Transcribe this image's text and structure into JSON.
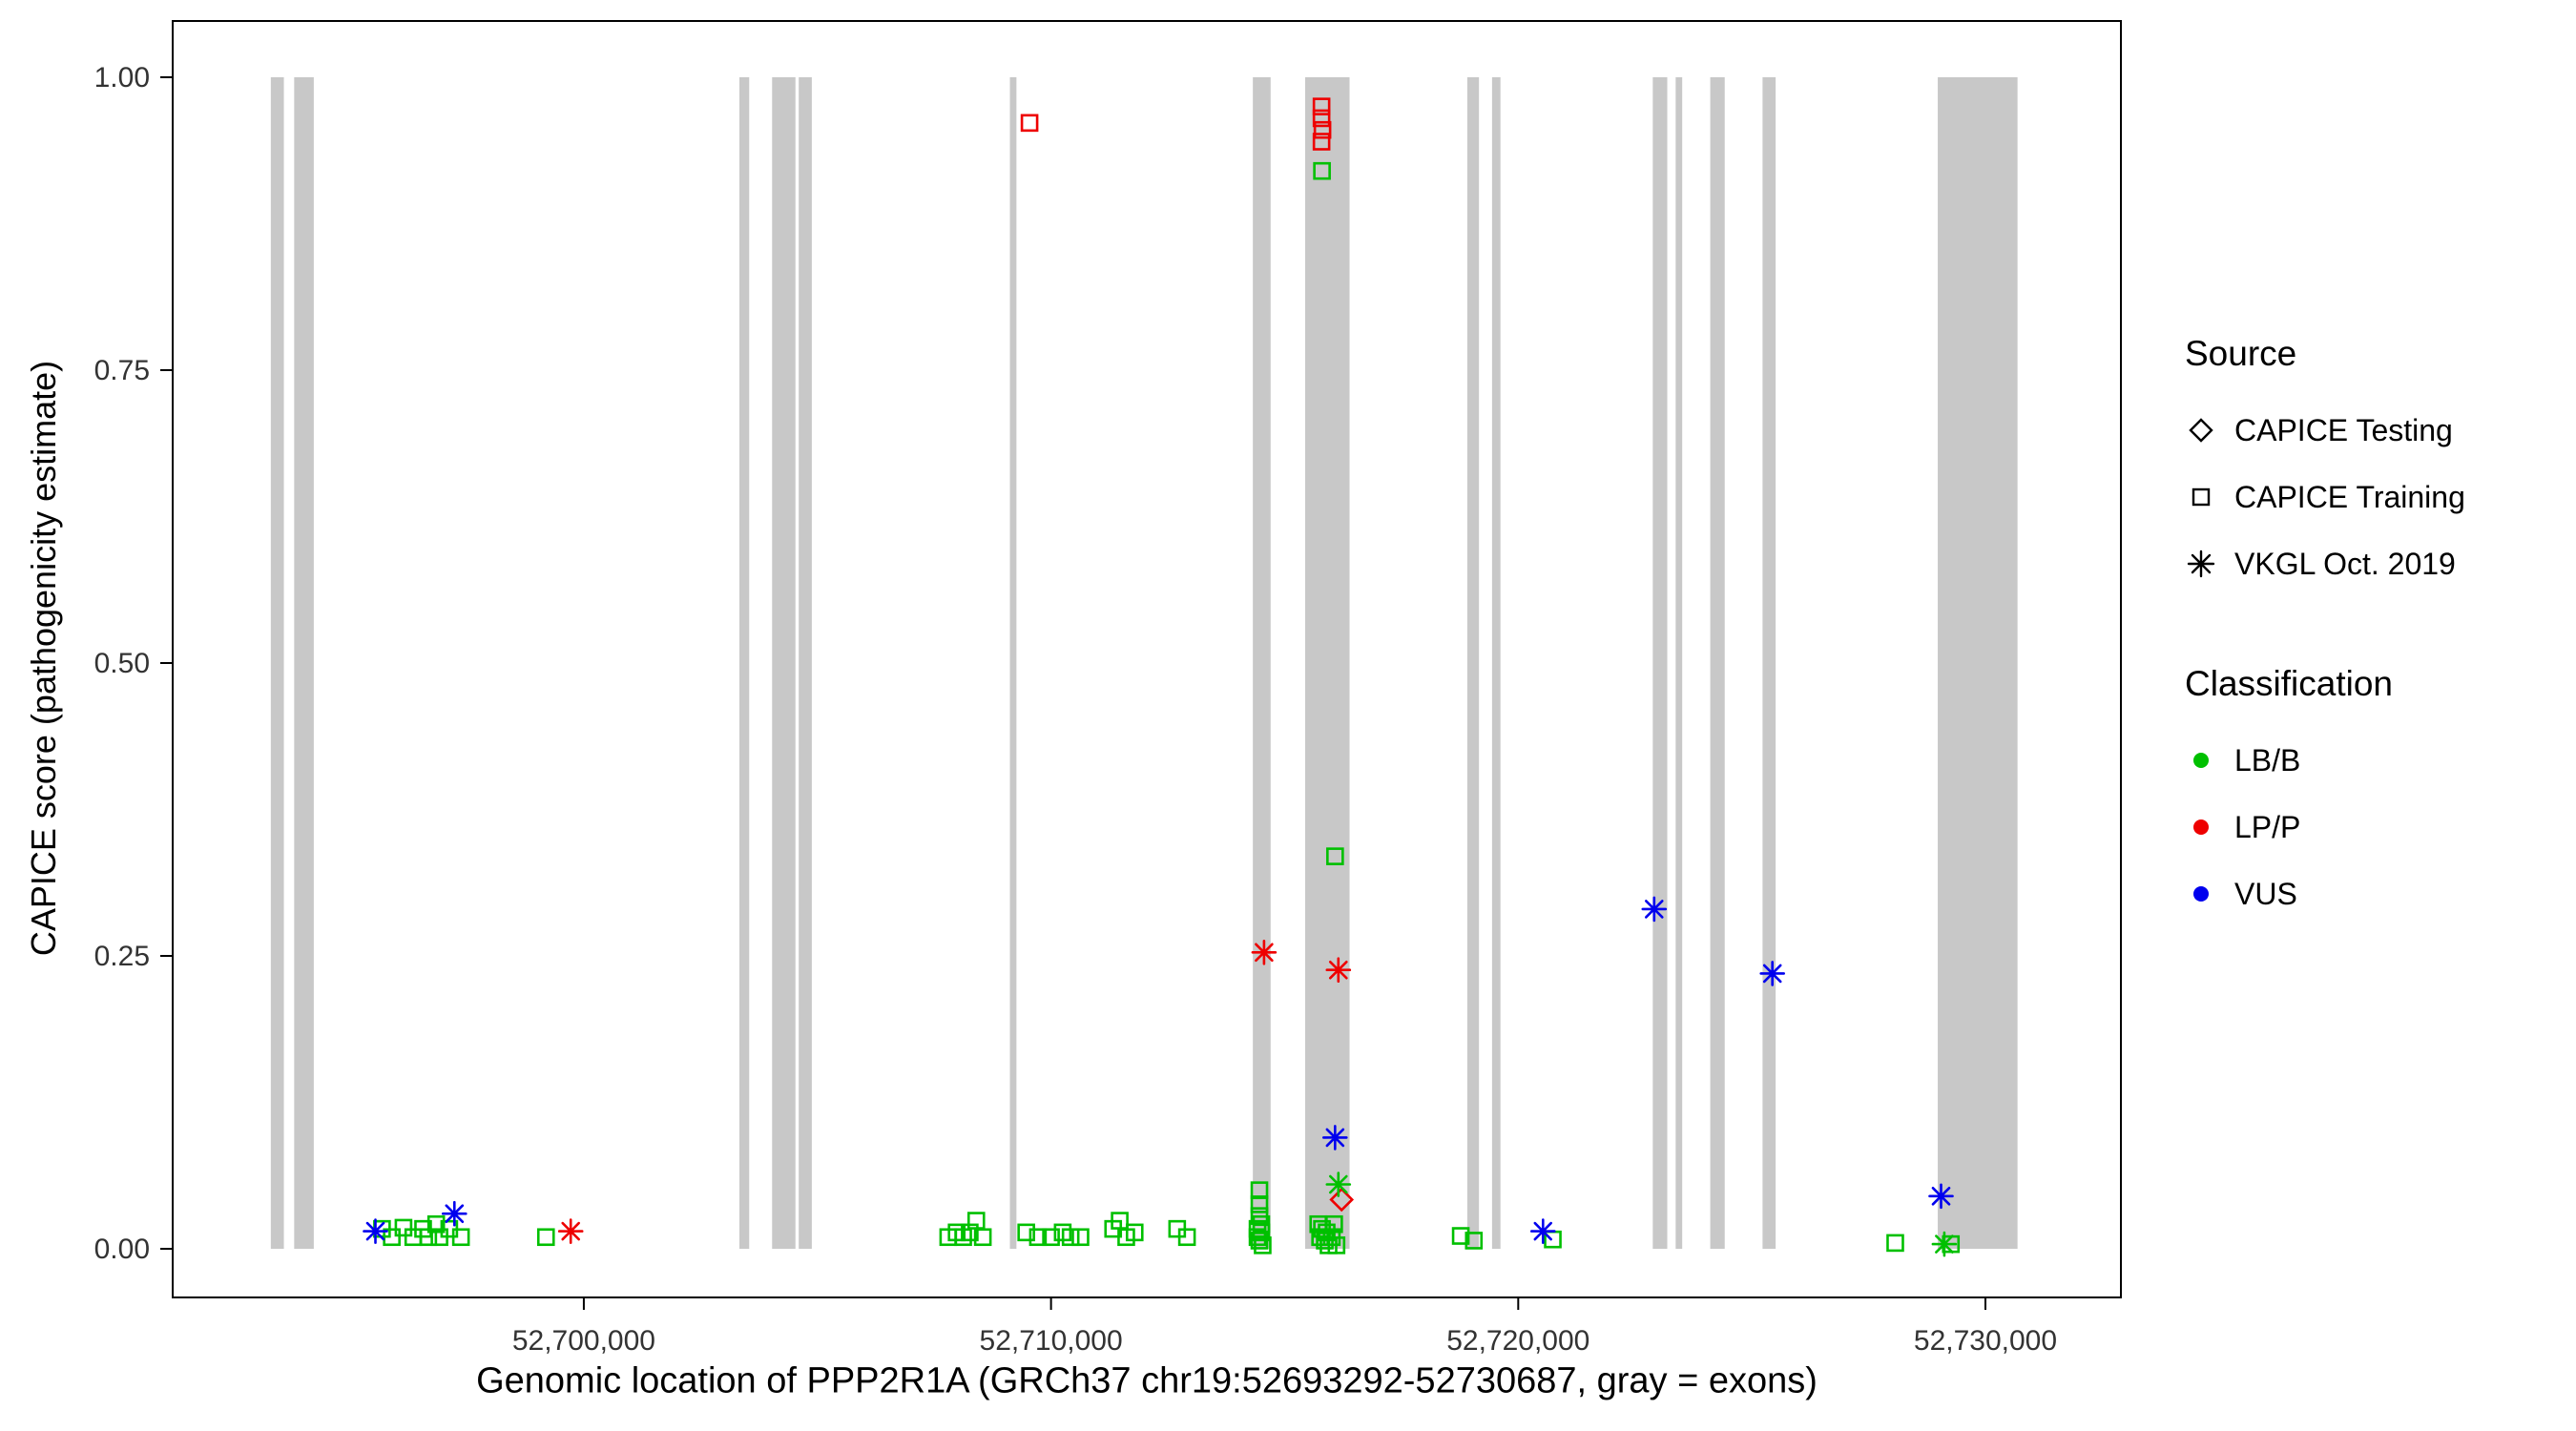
{
  "figure": {
    "background": "#ffffff",
    "panel_border": "#000000",
    "exon_color": "#c8c8c8",
    "tick_text_color": "#333333"
  },
  "chart_data": {
    "type": "scatter",
    "title": "",
    "xlabel": "Genomic location of PPP2R1A (GRCh37 chr19:52693292-52730687, gray = exons)",
    "ylabel": "CAPICE score (pathogenicity estimate)",
    "x_domain": [
      52691200,
      52732900
    ],
    "y_domain": [
      -0.0415,
      1.048
    ],
    "grid": false,
    "legend_position": "right",
    "x_ticks": [
      {
        "value": 52700000,
        "label": "52,700,000"
      },
      {
        "value": 52710000,
        "label": "52,710,000"
      },
      {
        "value": 52720000,
        "label": "52,720,000"
      },
      {
        "value": 52730000,
        "label": "52,730,000"
      }
    ],
    "y_ticks": [
      {
        "value": 0.0,
        "label": "0.00"
      },
      {
        "value": 0.25,
        "label": "0.25"
      },
      {
        "value": 0.5,
        "label": "0.50"
      },
      {
        "value": 0.75,
        "label": "0.75"
      },
      {
        "value": 1.0,
        "label": "1.00"
      }
    ],
    "exons": [
      [
        52693300,
        52693580
      ],
      [
        52693800,
        52694220
      ],
      [
        52703330,
        52703540
      ],
      [
        52704030,
        52704530
      ],
      [
        52704600,
        52704880
      ],
      [
        52709120,
        52709260
      ],
      [
        52714320,
        52714700
      ],
      [
        52715440,
        52716390
      ],
      [
        52718910,
        52719160
      ],
      [
        52719440,
        52719620
      ],
      [
        52722880,
        52723190
      ],
      [
        52723370,
        52723510
      ],
      [
        52724110,
        52724420
      ],
      [
        52725230,
        52725510
      ],
      [
        52728980,
        52730687
      ]
    ],
    "classification_colors": {
      "LB/B": "#00c000",
      "LP/P": "#ee0000",
      "VUS": "#0000ee"
    },
    "source_shapes": {
      "CAPICE Testing": "diamond",
      "CAPICE Training": "square",
      "VKGL Oct. 2019": "asterisk"
    },
    "points": [
      {
        "x": 52695680,
        "y": 0.017,
        "source": "CAPICE Training",
        "class": "LB/B"
      },
      {
        "x": 52695890,
        "y": 0.01,
        "source": "CAPICE Training",
        "class": "LB/B"
      },
      {
        "x": 52696140,
        "y": 0.018,
        "source": "CAPICE Training",
        "class": "LB/B"
      },
      {
        "x": 52696350,
        "y": 0.01,
        "source": "CAPICE Training",
        "class": "LB/B"
      },
      {
        "x": 52696560,
        "y": 0.017,
        "source": "CAPICE Training",
        "class": "LB/B"
      },
      {
        "x": 52696670,
        "y": 0.01,
        "source": "CAPICE Training",
        "class": "LB/B"
      },
      {
        "x": 52696840,
        "y": 0.021,
        "source": "CAPICE Training",
        "class": "LB/B"
      },
      {
        "x": 52696910,
        "y": 0.01,
        "source": "CAPICE Training",
        "class": "LB/B"
      },
      {
        "x": 52697120,
        "y": 0.017,
        "source": "CAPICE Training",
        "class": "LB/B"
      },
      {
        "x": 52697370,
        "y": 0.01,
        "source": "CAPICE Training",
        "class": "LB/B"
      },
      {
        "x": 52699190,
        "y": 0.01,
        "source": "CAPICE Training",
        "class": "LB/B"
      },
      {
        "x": 52707800,
        "y": 0.01,
        "source": "CAPICE Training",
        "class": "LB/B"
      },
      {
        "x": 52707980,
        "y": 0.014,
        "source": "CAPICE Training",
        "class": "LB/B"
      },
      {
        "x": 52708120,
        "y": 0.01,
        "source": "CAPICE Training",
        "class": "LB/B"
      },
      {
        "x": 52708260,
        "y": 0.014,
        "source": "CAPICE Training",
        "class": "LB/B"
      },
      {
        "x": 52708400,
        "y": 0.024,
        "source": "CAPICE Training",
        "class": "LB/B"
      },
      {
        "x": 52708540,
        "y": 0.01,
        "source": "CAPICE Training",
        "class": "LB/B"
      },
      {
        "x": 52709470,
        "y": 0.014,
        "source": "CAPICE Training",
        "class": "LB/B"
      },
      {
        "x": 52709720,
        "y": 0.01,
        "source": "CAPICE Training",
        "class": "LB/B"
      },
      {
        "x": 52710000,
        "y": 0.01,
        "source": "CAPICE Training",
        "class": "LB/B"
      },
      {
        "x": 52710250,
        "y": 0.014,
        "source": "CAPICE Training",
        "class": "LB/B"
      },
      {
        "x": 52710420,
        "y": 0.01,
        "source": "CAPICE Training",
        "class": "LB/B"
      },
      {
        "x": 52710630,
        "y": 0.01,
        "source": "CAPICE Training",
        "class": "LB/B"
      },
      {
        "x": 52711330,
        "y": 0.017,
        "source": "CAPICE Training",
        "class": "LB/B"
      },
      {
        "x": 52711470,
        "y": 0.024,
        "source": "CAPICE Training",
        "class": "LB/B"
      },
      {
        "x": 52711610,
        "y": 0.01,
        "source": "CAPICE Training",
        "class": "LB/B"
      },
      {
        "x": 52711790,
        "y": 0.014,
        "source": "CAPICE Training",
        "class": "LB/B"
      },
      {
        "x": 52712700,
        "y": 0.017,
        "source": "CAPICE Training",
        "class": "LB/B"
      },
      {
        "x": 52712910,
        "y": 0.01,
        "source": "CAPICE Training",
        "class": "LB/B"
      },
      {
        "x": 52714420,
        "y": 0.017,
        "source": "CAPICE Training",
        "class": "LB/B"
      },
      {
        "x": 52714420,
        "y": 0.01,
        "source": "CAPICE Training",
        "class": "LB/B"
      },
      {
        "x": 52714460,
        "y": 0.05,
        "source": "CAPICE Training",
        "class": "LB/B"
      },
      {
        "x": 52714460,
        "y": 0.038,
        "source": "CAPICE Training",
        "class": "LB/B"
      },
      {
        "x": 52714460,
        "y": 0.028,
        "source": "CAPICE Training",
        "class": "LB/B"
      },
      {
        "x": 52714460,
        "y": 0.007,
        "source": "CAPICE Training",
        "class": "LB/B"
      },
      {
        "x": 52714500,
        "y": 0.021,
        "source": "CAPICE Training",
        "class": "LB/B"
      },
      {
        "x": 52714500,
        "y": 0.014,
        "source": "CAPICE Training",
        "class": "LB/B"
      },
      {
        "x": 52714530,
        "y": 0.003,
        "source": "CAPICE Training",
        "class": "LB/B"
      },
      {
        "x": 52715800,
        "y": 0.92,
        "source": "CAPICE Training",
        "class": "LB/B"
      },
      {
        "x": 52716080,
        "y": 0.335,
        "source": "CAPICE Training",
        "class": "LB/B"
      },
      {
        "x": 52715720,
        "y": 0.021,
        "source": "CAPICE Training",
        "class": "LB/B"
      },
      {
        "x": 52715760,
        "y": 0.01,
        "source": "CAPICE Training",
        "class": "LB/B"
      },
      {
        "x": 52715800,
        "y": 0.017,
        "source": "CAPICE Training",
        "class": "LB/B"
      },
      {
        "x": 52715860,
        "y": 0.007,
        "source": "CAPICE Training",
        "class": "LB/B"
      },
      {
        "x": 52715900,
        "y": 0.014,
        "source": "CAPICE Training",
        "class": "LB/B"
      },
      {
        "x": 52715940,
        "y": 0.003,
        "source": "CAPICE Training",
        "class": "LB/B"
      },
      {
        "x": 52716010,
        "y": 0.01,
        "source": "CAPICE Training",
        "class": "LB/B"
      },
      {
        "x": 52716060,
        "y": 0.021,
        "source": "CAPICE Training",
        "class": "LB/B"
      },
      {
        "x": 52716110,
        "y": 0.003,
        "source": "CAPICE Training",
        "class": "LB/B"
      },
      {
        "x": 52718770,
        "y": 0.011,
        "source": "CAPICE Training",
        "class": "LB/B"
      },
      {
        "x": 52719050,
        "y": 0.007,
        "source": "CAPICE Training",
        "class": "LB/B"
      },
      {
        "x": 52720740,
        "y": 0.008,
        "source": "CAPICE Training",
        "class": "LB/B"
      },
      {
        "x": 52728070,
        "y": 0.005,
        "source": "CAPICE Training",
        "class": "LB/B"
      },
      {
        "x": 52729260,
        "y": 0.004,
        "source": "CAPICE Training",
        "class": "LB/B"
      },
      {
        "x": 52709540,
        "y": 0.961,
        "source": "CAPICE Training",
        "class": "LP/P"
      },
      {
        "x": 52715790,
        "y": 0.975,
        "source": "CAPICE Training",
        "class": "LP/P"
      },
      {
        "x": 52715790,
        "y": 0.965,
        "source": "CAPICE Training",
        "class": "LP/P"
      },
      {
        "x": 52715810,
        "y": 0.955,
        "source": "CAPICE Training",
        "class": "LP/P"
      },
      {
        "x": 52715790,
        "y": 0.945,
        "source": "CAPICE Training",
        "class": "LP/P"
      },
      {
        "x": 52716220,
        "y": 0.042,
        "source": "CAPICE Testing",
        "class": "LP/P"
      },
      {
        "x": 52695540,
        "y": 0.015,
        "source": "VKGL Oct. 2019",
        "class": "VUS"
      },
      {
        "x": 52697230,
        "y": 0.03,
        "source": "VKGL Oct. 2019",
        "class": "VUS"
      },
      {
        "x": 52699720,
        "y": 0.015,
        "source": "VKGL Oct. 2019",
        "class": "LP/P"
      },
      {
        "x": 52714560,
        "y": 0.253,
        "source": "VKGL Oct. 2019",
        "class": "LP/P"
      },
      {
        "x": 52716150,
        "y": 0.238,
        "source": "VKGL Oct. 2019",
        "class": "LP/P"
      },
      {
        "x": 52716080,
        "y": 0.095,
        "source": "VKGL Oct. 2019",
        "class": "VUS"
      },
      {
        "x": 52716150,
        "y": 0.055,
        "source": "VKGL Oct. 2019",
        "class": "LB/B"
      },
      {
        "x": 52720530,
        "y": 0.015,
        "source": "VKGL Oct. 2019",
        "class": "VUS"
      },
      {
        "x": 52722910,
        "y": 0.29,
        "source": "VKGL Oct. 2019",
        "class": "VUS"
      },
      {
        "x": 52725440,
        "y": 0.235,
        "source": "VKGL Oct. 2019",
        "class": "VUS"
      },
      {
        "x": 52729050,
        "y": 0.045,
        "source": "VKGL Oct. 2019",
        "class": "VUS"
      },
      {
        "x": 52729120,
        "y": 0.004,
        "source": "VKGL Oct. 2019",
        "class": "LB/B"
      }
    ]
  },
  "legend": {
    "source": {
      "title": "Source",
      "items": [
        {
          "label": "CAPICE Testing",
          "shape": "diamond"
        },
        {
          "label": "CAPICE Training",
          "shape": "square"
        },
        {
          "label": "VKGL Oct. 2019",
          "shape": "asterisk"
        }
      ]
    },
    "classification": {
      "title": "Classification",
      "items": [
        {
          "label": "LB/B",
          "color": "#00c000"
        },
        {
          "label": "LP/P",
          "color": "#ee0000"
        },
        {
          "label": "VUS",
          "color": "#0000ee"
        }
      ]
    }
  }
}
